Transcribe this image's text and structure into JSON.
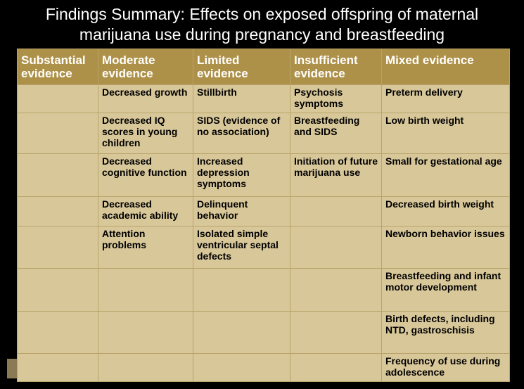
{
  "title_line1": "Findings Summary: Effects on exposed offspring of maternal",
  "title_line2": "marijuana use during pregnancy and breastfeeding",
  "columns": [
    {
      "line1": "Substantial",
      "line2": "evidence"
    },
    {
      "line1": "Moderate",
      "line2": "evidence"
    },
    {
      "line1": "Limited",
      "line2": "evidence"
    },
    {
      "line1": "Insufficient",
      "line2": "evidence"
    },
    {
      "line1": "Mixed evidence",
      "line2": ""
    }
  ],
  "rows": [
    [
      "",
      "Decreased growth",
      "Stillbirth",
      "Psychosis symptoms",
      "Preterm delivery"
    ],
    [
      "",
      "Decreased IQ scores in young children",
      "SIDS (evidence of no association)",
      "Breastfeeding and SIDS",
      "Low birth weight"
    ],
    [
      "",
      "Decreased cognitive function",
      "Increased depression symptoms",
      "Initiation of future marijuana use",
      "Small for gestational age"
    ],
    [
      "",
      "Decreased academic ability",
      "Delinquent behavior",
      "",
      "Decreased birth weight"
    ],
    [
      "",
      "Attention problems",
      "Isolated simple ventricular septal defects",
      "",
      "Newborn behavior issues"
    ],
    [
      "",
      "",
      "",
      "",
      "Breastfeeding and infant motor development"
    ],
    [
      "",
      "",
      "",
      "",
      "Birth defects, including NTD, gastroschisis"
    ],
    [
      "",
      "",
      "",
      "",
      "Frequency of use during adolescence"
    ]
  ]
}
